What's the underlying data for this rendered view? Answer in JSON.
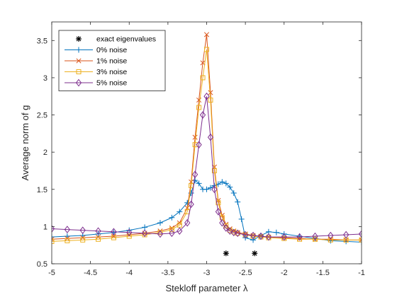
{
  "chart_data": {
    "type": "line",
    "title": "",
    "xlabel": "Stekloff parameter λ",
    "ylabel": "Average norm of g",
    "xlim": [
      -5,
      -1
    ],
    "ylim": [
      0.5,
      3.75
    ],
    "xticks": [
      -5,
      -4.5,
      -4,
      -3.5,
      -3,
      -2.5,
      -2,
      -1.5,
      -1
    ],
    "xtick_labels": [
      "-5",
      "-4.5",
      "-4",
      "-3.5",
      "-3",
      "-2.5",
      "-2",
      "-1.5",
      "-1"
    ],
    "yticks": [
      0.5,
      1,
      1.5,
      2,
      2.5,
      3,
      3.5
    ],
    "ytick_labels": [
      "0.5",
      "1",
      "1.5",
      "2",
      "2.5",
      "3",
      "3.5"
    ],
    "grid": false,
    "legend_position": "top-left",
    "exact_eigenvalues": {
      "name": "exact eigenvalues",
      "marker": "asterisk",
      "color": "#000000",
      "x": [
        -2.75,
        -2.38
      ],
      "y": [
        0.64,
        0.64
      ]
    },
    "series": [
      {
        "name": "0% noise",
        "color": "#0072BD",
        "marker": "plus",
        "x": [
          -5,
          -4.8,
          -4.6,
          -4.4,
          -4.2,
          -4.0,
          -3.8,
          -3.6,
          -3.45,
          -3.35,
          -3.25,
          -3.2,
          -3.15,
          -3.1,
          -3.05,
          -3.0,
          -2.95,
          -2.9,
          -2.85,
          -2.8,
          -2.75,
          -2.7,
          -2.65,
          -2.6,
          -2.55,
          -2.5,
          -2.4,
          -2.3,
          -2.2,
          -2.1,
          -2.0,
          -1.8,
          -1.6,
          -1.4,
          -1.2,
          -1.0
        ],
        "y": [
          0.86,
          0.87,
          0.88,
          0.9,
          0.92,
          0.95,
          0.99,
          1.05,
          1.12,
          1.2,
          1.32,
          1.45,
          1.62,
          1.58,
          1.5,
          1.5,
          1.52,
          1.55,
          1.57,
          1.6,
          1.58,
          1.53,
          1.45,
          1.33,
          1.1,
          0.85,
          0.82,
          0.88,
          0.93,
          0.92,
          0.9,
          0.87,
          0.84,
          0.81,
          0.8,
          0.79
        ]
      },
      {
        "name": "1% noise",
        "color": "#D95319",
        "marker": "x",
        "x": [
          -5,
          -4.8,
          -4.6,
          -4.4,
          -4.2,
          -4.0,
          -3.8,
          -3.6,
          -3.45,
          -3.35,
          -3.25,
          -3.2,
          -3.15,
          -3.1,
          -3.05,
          -3.0,
          -2.95,
          -2.9,
          -2.85,
          -2.8,
          -2.75,
          -2.7,
          -2.65,
          -2.6,
          -2.5,
          -2.4,
          -2.3,
          -2.2,
          -2.0,
          -1.8,
          -1.6,
          -1.4,
          -1.2,
          -1.0
        ],
        "y": [
          0.83,
          0.84,
          0.85,
          0.86,
          0.87,
          0.89,
          0.91,
          0.94,
          0.98,
          1.05,
          1.25,
          1.6,
          2.2,
          2.7,
          3.2,
          3.58,
          2.8,
          1.8,
          1.35,
          1.15,
          1.03,
          0.97,
          0.94,
          0.92,
          0.9,
          0.88,
          0.87,
          0.86,
          0.85,
          0.84,
          0.83,
          0.83,
          0.82,
          0.82
        ]
      },
      {
        "name": "3% noise",
        "color": "#EDB120",
        "marker": "square",
        "x": [
          -5,
          -4.8,
          -4.6,
          -4.4,
          -4.2,
          -4.0,
          -3.8,
          -3.6,
          -3.45,
          -3.35,
          -3.25,
          -3.2,
          -3.15,
          -3.1,
          -3.05,
          -3.0,
          -2.95,
          -2.9,
          -2.85,
          -2.8,
          -2.75,
          -2.7,
          -2.65,
          -2.6,
          -2.5,
          -2.4,
          -2.3,
          -2.2,
          -2.0,
          -1.8,
          -1.6,
          -1.4,
          -1.2,
          -1.0
        ],
        "y": [
          0.8,
          0.81,
          0.82,
          0.83,
          0.85,
          0.87,
          0.89,
          0.92,
          0.96,
          1.02,
          1.2,
          1.55,
          2.1,
          2.6,
          3.0,
          3.38,
          2.7,
          1.75,
          1.32,
          1.12,
          1.01,
          0.95,
          0.93,
          0.91,
          0.89,
          0.87,
          0.86,
          0.85,
          0.84,
          0.83,
          0.83,
          0.82,
          0.82,
          0.82
        ]
      },
      {
        "name": "5% noise",
        "color": "#7E2F8E",
        "marker": "diamond",
        "x": [
          -5,
          -4.8,
          -4.6,
          -4.4,
          -4.2,
          -4.0,
          -3.8,
          -3.6,
          -3.45,
          -3.35,
          -3.25,
          -3.2,
          -3.15,
          -3.1,
          -3.05,
          -3.0,
          -2.95,
          -2.9,
          -2.85,
          -2.8,
          -2.75,
          -2.7,
          -2.65,
          -2.6,
          -2.5,
          -2.4,
          -2.3,
          -2.2,
          -2.0,
          -1.8,
          -1.6,
          -1.4,
          -1.2,
          -1.0
        ],
        "y": [
          0.97,
          0.96,
          0.95,
          0.94,
          0.93,
          0.92,
          0.91,
          0.9,
          0.91,
          0.94,
          1.05,
          1.3,
          1.7,
          2.1,
          2.5,
          2.75,
          2.2,
          1.5,
          1.2,
          1.05,
          0.98,
          0.94,
          0.92,
          0.91,
          0.89,
          0.88,
          0.87,
          0.86,
          0.86,
          0.86,
          0.87,
          0.88,
          0.89,
          0.9
        ]
      }
    ]
  }
}
